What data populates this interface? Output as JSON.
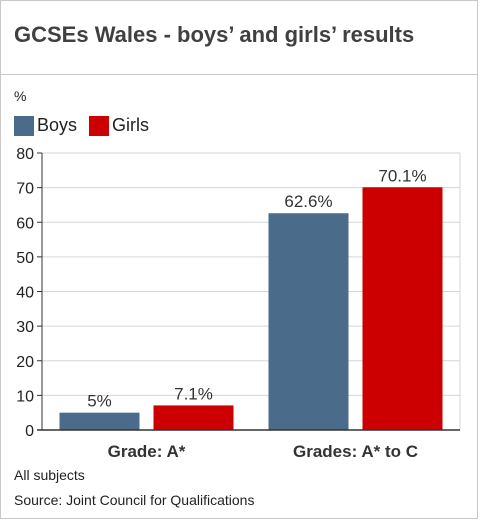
{
  "colors": {
    "boys": "#4a6b8a",
    "girls": "#cc0000",
    "grid": "#d6d6d6",
    "axis": "#333333"
  },
  "chart_data": {
    "type": "bar",
    "title": "GCSEs Wales - boys’ and girls’ results",
    "ylabel": "%",
    "xlabel": "",
    "ylim": [
      0,
      80
    ],
    "yticks": [
      0,
      10,
      20,
      30,
      40,
      50,
      60,
      70,
      80
    ],
    "categories": [
      "Grade: A*",
      "Grades: A* to C"
    ],
    "series": [
      {
        "name": "Boys",
        "values": [
          5,
          62.6
        ],
        "labels": [
          "5%",
          "62.6%"
        ]
      },
      {
        "name": "Girls",
        "values": [
          7.1,
          70.1
        ],
        "labels": [
          "7.1%",
          "70.1%"
        ]
      }
    ],
    "grid": true,
    "legend": "top-left"
  },
  "footer": {
    "subtitle": "All subjects",
    "source": "Source: Joint Council for Qualifications"
  }
}
